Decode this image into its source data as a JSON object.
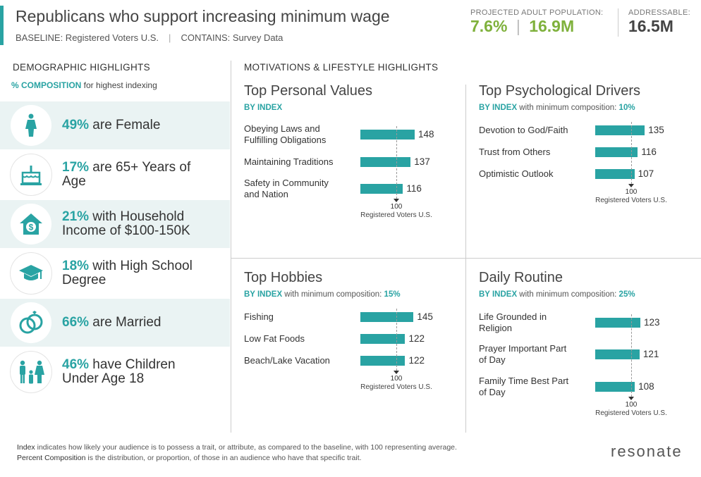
{
  "header": {
    "title": "Republicans who support increasing minimum wage",
    "baseline_label": "BASELINE: Registered Voters U.S.",
    "contains_label": "CONTAINS: Survey Data",
    "projected_label": "PROJECTED ADULT POPULATION:",
    "projected_pct": "7.6%",
    "projected_count": "16.9M",
    "addressable_label": "ADDRESSABLE:",
    "addressable_count": "16.5M"
  },
  "demographics": {
    "heading": "DEMOGRAPHIC HIGHLIGHTS",
    "sub_bold": "% COMPOSITION",
    "sub_rest": " for highest indexing",
    "items": [
      {
        "pct": "49%",
        "line1": " are Female",
        "line2": "",
        "icon": "female-icon"
      },
      {
        "pct": "17%",
        "line1": " are 65+ Years of",
        "line2": "Age",
        "icon": "birthday-cake-icon"
      },
      {
        "pct": "21%",
        "line1": " with Household",
        "line2": "Income of $100-150K",
        "icon": "house-dollar-icon"
      },
      {
        "pct": "18%",
        "line1": " with High School",
        "line2": "Degree",
        "icon": "graduation-cap-icon"
      },
      {
        "pct": "66%",
        "line1": " are Married",
        "line2": "",
        "icon": "wedding-rings-icon"
      },
      {
        "pct": "46%",
        "line1": " have Children",
        "line2": "Under Age 18",
        "icon": "family-icon"
      }
    ]
  },
  "motivations": {
    "heading": "MOTIVATIONS & LIFESTYLE HIGHLIGHTS",
    "ref_num": "100",
    "ref_label": "Registered Voters U.S.",
    "panels": [
      {
        "title": "Top Personal Values",
        "by_index": "BY INDEX",
        "min_text": "",
        "min_pct": "",
        "rows": [
          {
            "label1": "Obeying Laws and",
            "label2": "Fulfilling Obligations",
            "value": 148
          },
          {
            "label1": "Maintaining Traditions",
            "label2": "",
            "value": 137
          },
          {
            "label1": "Safety in Community",
            "label2": "and Nation",
            "value": 116
          }
        ]
      },
      {
        "title": "Top Psychological Drivers",
        "by_index": "BY INDEX",
        "min_text": " with minimum composition: ",
        "min_pct": "10%",
        "rows": [
          {
            "label1": "Devotion to God/Faith",
            "label2": "",
            "value": 135
          },
          {
            "label1": "Trust from Others",
            "label2": "",
            "value": 116
          },
          {
            "label1": "Optimistic Outlook",
            "label2": "",
            "value": 107
          }
        ]
      },
      {
        "title": "Top Hobbies",
        "by_index": "BY INDEX",
        "min_text": " with minimum composition: ",
        "min_pct": "15%",
        "rows": [
          {
            "label1": "Fishing",
            "label2": "",
            "value": 145
          },
          {
            "label1": "Low Fat Foods",
            "label2": "",
            "value": 122
          },
          {
            "label1": "Beach/Lake Vacation",
            "label2": "",
            "value": 122
          }
        ]
      },
      {
        "title": "Daily Routine",
        "by_index": "BY INDEX",
        "min_text": " with minimum composition: ",
        "min_pct": "25%",
        "rows": [
          {
            "label1": "Life Grounded in",
            "label2": "Religion",
            "value": 123
          },
          {
            "label1": "Prayer Important Part",
            "label2": "of Day",
            "value": 121
          },
          {
            "label1": "Family Time Best Part",
            "label2": "of Day",
            "value": 108
          }
        ]
      }
    ]
  },
  "footer": {
    "index_term": "Index",
    "index_text": " indicates how likely your audience is to possess a trait, or attribute, as compared to the baseline, with 100 representing average.",
    "pc_term": "Percent Composition",
    "pc_text": " is the distribution, or proportion, of those in an audience who have that specific trait.",
    "logo": "resonate"
  },
  "colors": {
    "accent": "#29a3a3",
    "green": "#7fb13c"
  }
}
